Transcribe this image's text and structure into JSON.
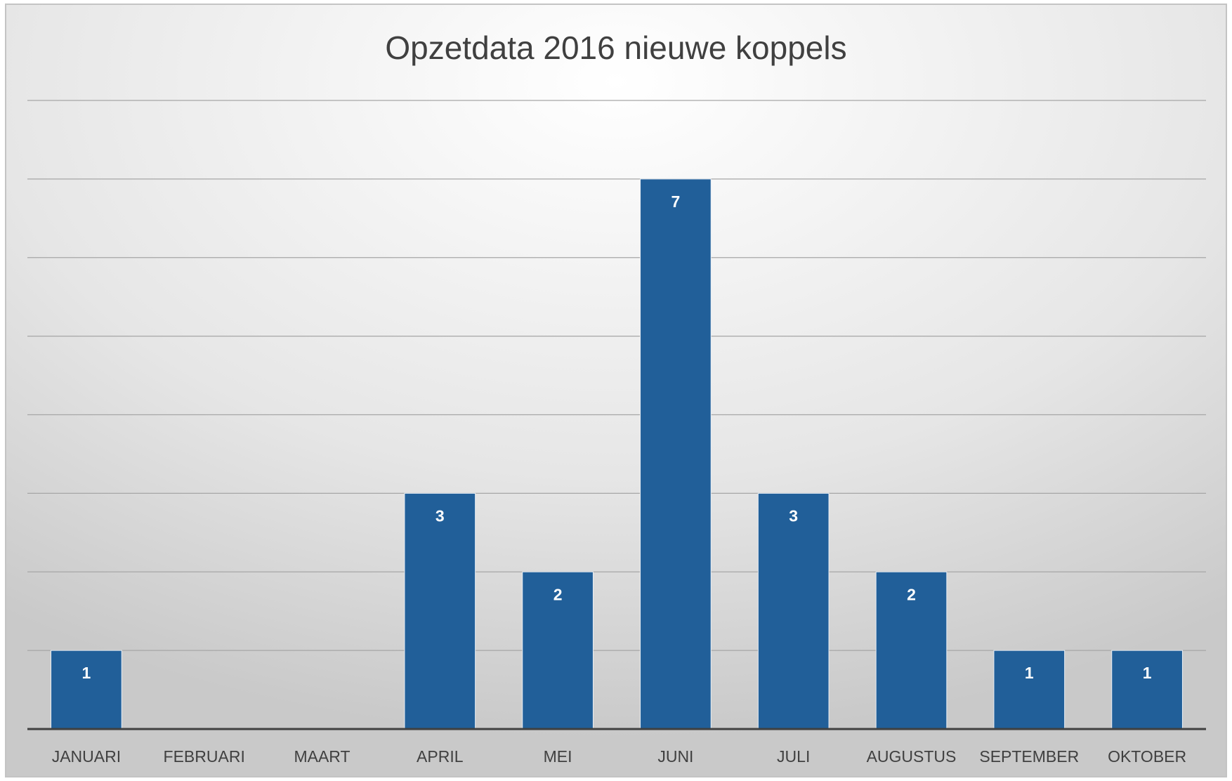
{
  "chart_data": {
    "type": "bar",
    "title": "Opzetdata 2016 nieuwe koppels",
    "categories": [
      "JANUARI",
      "FEBRUARI",
      "MAART",
      "APRIL",
      "MEI",
      "JUNI",
      "JULI",
      "AUGUSTUS",
      "SEPTEMBER",
      "OKTOBER"
    ],
    "values": [
      1,
      0,
      0,
      3,
      2,
      7,
      3,
      2,
      1,
      1
    ],
    "color": "#215f99",
    "ylim": [
      0,
      8
    ],
    "yticks": [
      0,
      1,
      2,
      3,
      4,
      5,
      6,
      7,
      8
    ],
    "grid": true,
    "ytick_labels": false,
    "data_labels": true
  }
}
